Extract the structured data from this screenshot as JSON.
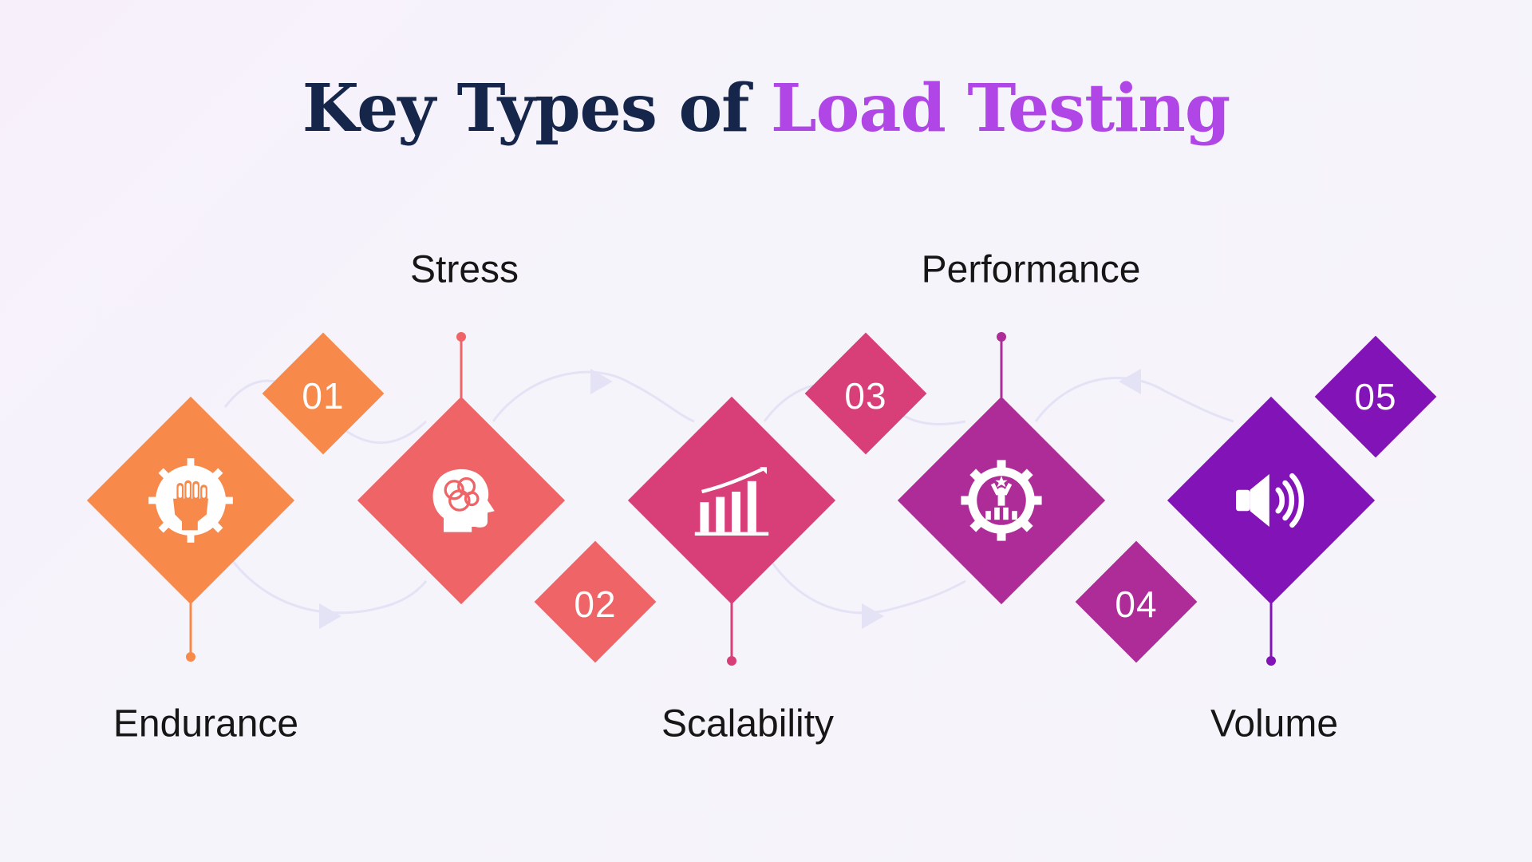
{
  "title": {
    "part1": "Key Types of ",
    "part2": "Load Testing"
  },
  "colors": {
    "title_dark": "#16254a",
    "title_accent": "#b146e6",
    "flow_arrows": "#e4e2f5"
  },
  "steps": [
    {
      "number": "01",
      "label": "Endurance",
      "icon": "fist-gear-icon",
      "color": "#f78a4b"
    },
    {
      "number": "02",
      "label": "Stress",
      "icon": "brain-head-icon",
      "color": "#ef6466"
    },
    {
      "number": "03",
      "label": "Scalability",
      "icon": "growth-bar-chart-icon",
      "color": "#d83f79"
    },
    {
      "number": "04",
      "label": "Performance",
      "icon": "performance-gear-icon",
      "color": "#ad2c98"
    },
    {
      "number": "05",
      "label": "Volume",
      "icon": "speaker-volume-icon",
      "color": "#8213b7"
    }
  ]
}
